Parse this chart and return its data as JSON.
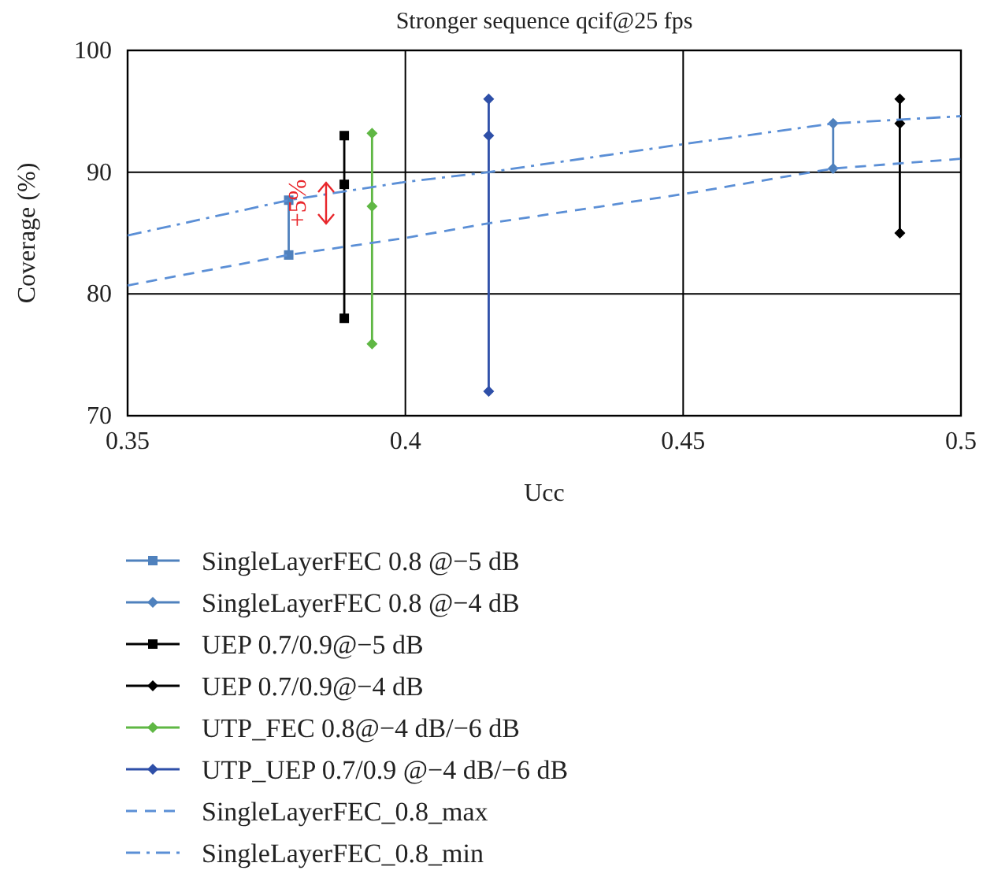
{
  "chart_data": {
    "type": "line",
    "title": "Stronger sequence qcif@25 fps",
    "xlabel": "Ucc",
    "ylabel": "Coverage (%)",
    "xlim": [
      0.35,
      0.5
    ],
    "xticks": [
      0.35,
      0.4,
      0.45,
      0.5
    ],
    "ylim": [
      70,
      100
    ],
    "yticks": [
      70,
      80,
      90,
      100
    ],
    "grid": true,
    "legend": "bottom",
    "annotations": [
      "+5%"
    ],
    "series": [
      {
        "name": "SingleLayerFEC 0.8 @−5 dB",
        "color": "#4f81bd",
        "marker": "square",
        "line_style": "solid",
        "x": [
          0.379,
          0.379
        ],
        "values": [
          87.7,
          83.2
        ]
      },
      {
        "name": "SingleLayerFEC 0.8 @−4 dB",
        "color": "#4f81bd",
        "marker": "diamond",
        "line_style": "solid",
        "x": [
          0.477,
          0.477
        ],
        "values": [
          94.0,
          90.3
        ]
      },
      {
        "name": "UEP 0.7/0.9@−5 dB",
        "color": "#000000",
        "marker": "square",
        "line_style": "solid",
        "x": [
          0.389,
          0.389,
          0.389
        ],
        "values": [
          93.0,
          89.0,
          78.0
        ]
      },
      {
        "name": "UEP 0.7/0.9@−4 dB",
        "color": "#000000",
        "marker": "diamond",
        "line_style": "solid",
        "x": [
          0.489,
          0.489,
          0.489
        ],
        "values": [
          96.0,
          94.0,
          85.0
        ]
      },
      {
        "name": "UTP_FEC 0.8@−4 dB/−6 dB",
        "color": "#5fb744",
        "marker": "diamond",
        "line_style": "solid",
        "x": [
          0.394,
          0.394,
          0.394
        ],
        "values": [
          93.2,
          87.2,
          75.9
        ]
      },
      {
        "name": "UTP_UEP 0.7/0.9 @−4 dB/−6 dB",
        "color": "#2e4fa8",
        "marker": "diamond",
        "line_style": "solid",
        "x": [
          0.415,
          0.415,
          0.415
        ],
        "values": [
          96.0,
          93.0,
          72.0
        ]
      },
      {
        "name": "SingleLayerFEC_0.8_max",
        "color": "#5b8fd6",
        "marker": "none",
        "line_style": "dashed",
        "x": [
          0.35,
          0.379,
          0.4,
          0.415,
          0.45,
          0.477,
          0.5
        ],
        "values": [
          80.7,
          83.2,
          84.6,
          85.8,
          88.2,
          90.3,
          91.1
        ]
      },
      {
        "name": "SingleLayerFEC_0.8_min",
        "color": "#5b8fd6",
        "marker": "none",
        "line_style": "dashdot",
        "x": [
          0.35,
          0.379,
          0.4,
          0.415,
          0.45,
          0.477,
          0.5
        ],
        "values": [
          84.8,
          87.7,
          89.2,
          90.0,
          92.3,
          94.0,
          94.6
        ]
      }
    ]
  }
}
